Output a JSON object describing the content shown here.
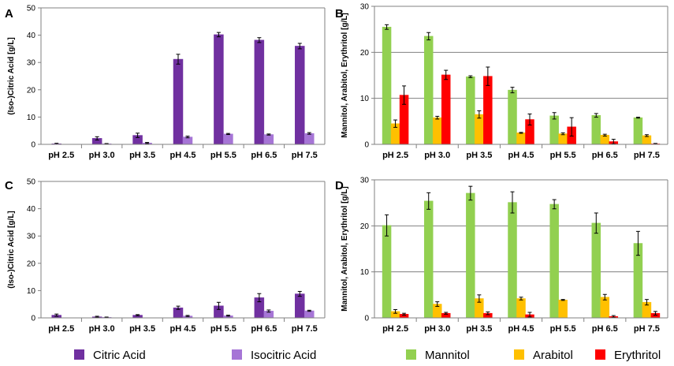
{
  "colors": {
    "Citric Acid": "#7030a0",
    "Isocitric Acid": "#a675d6",
    "Mannitol": "#92d050",
    "Arabitol": "#ffc000",
    "Erythritol": "#ff0000"
  },
  "legend": [
    "Citric Acid",
    "Isocitric Acid",
    "Mannitol",
    "Arabitol",
    "Erythritol"
  ],
  "chart_data": [
    {
      "panel": "A",
      "type": "bar",
      "ylabel": "(Iso-)Citric Acid [g/L]",
      "ylim": [
        0,
        50
      ],
      "yticks": [
        0,
        10,
        20,
        30,
        40,
        50
      ],
      "grid": false,
      "categories": [
        "pH 2.5",
        "pH 3.0",
        "pH 3.5",
        "pH 4.5",
        "pH 5.5",
        "pH 6.5",
        "pH 7.5"
      ],
      "series": [
        {
          "name": "Citric Acid",
          "values": [
            0.2,
            2.2,
            3.3,
            31.2,
            40.2,
            38.2,
            36.0
          ],
          "errors": [
            0.2,
            0.6,
            0.8,
            1.8,
            0.8,
            0.9,
            1.0
          ]
        },
        {
          "name": "Isocitric Acid",
          "values": [
            0.0,
            0.2,
            0.5,
            2.7,
            3.8,
            3.6,
            4.0
          ],
          "errors": [
            0.0,
            0.1,
            0.2,
            0.3,
            0.2,
            0.2,
            0.3
          ]
        }
      ]
    },
    {
      "panel": "B",
      "type": "bar",
      "ylabel": "Mannitol, Arabitol, Erythritol [g/L]",
      "ylim": [
        0,
        30
      ],
      "yticks": [
        0,
        10,
        20,
        30
      ],
      "grid": true,
      "categories": [
        "pH 2.5",
        "pH 3.0",
        "pH 3.5",
        "pH 4.5",
        "pH 5.5",
        "pH 6.5",
        "pH 7.5"
      ],
      "series": [
        {
          "name": "Mannitol",
          "values": [
            25.5,
            23.5,
            14.7,
            11.8,
            6.2,
            6.3,
            5.8
          ],
          "errors": [
            0.5,
            0.8,
            0.2,
            0.6,
            0.7,
            0.4,
            0.1
          ]
        },
        {
          "name": "Arabitol",
          "values": [
            4.5,
            5.8,
            6.5,
            2.5,
            2.3,
            2.0,
            1.9
          ],
          "errors": [
            0.8,
            0.3,
            0.8,
            0.1,
            0.2,
            0.2,
            0.2
          ]
        },
        {
          "name": "Erythritol",
          "values": [
            10.7,
            15.1,
            14.8,
            5.4,
            3.8,
            0.6,
            0.1
          ],
          "errors": [
            2.0,
            1.0,
            2.0,
            1.2,
            2.0,
            0.5,
            0.1
          ]
        }
      ]
    },
    {
      "panel": "C",
      "type": "bar",
      "ylabel": "(Iso-)Citric Acid [g/L]",
      "ylim": [
        0,
        50
      ],
      "yticks": [
        0,
        10,
        20,
        30,
        40,
        50
      ],
      "grid": false,
      "categories": [
        "pH 2.5",
        "pH 3.0",
        "pH 3.5",
        "pH 4.5",
        "pH 5.5",
        "pH 6.5",
        "pH 7.5"
      ],
      "series": [
        {
          "name": "Citric Acid",
          "values": [
            1.0,
            0.4,
            1.0,
            3.7,
            4.4,
            7.4,
            8.8
          ],
          "errors": [
            0.4,
            0.2,
            0.2,
            0.6,
            1.3,
            1.5,
            0.9
          ]
        },
        {
          "name": "Isocitric Acid",
          "values": [
            0.0,
            0.2,
            0.0,
            0.7,
            0.8,
            2.5,
            2.6
          ],
          "errors": [
            0.0,
            0.1,
            0.0,
            0.2,
            0.2,
            0.4,
            0.2
          ]
        }
      ]
    },
    {
      "panel": "D",
      "type": "bar",
      "ylabel": "Mannitol, Arabitol, Erythritol [g/L]",
      "ylim": [
        0,
        30
      ],
      "yticks": [
        0,
        10,
        20,
        30
      ],
      "grid": true,
      "categories": [
        "pH 2.5",
        "pH 3.0",
        "pH 3.5",
        "pH 4.5",
        "pH 5.5",
        "pH 6.5",
        "pH 7.5"
      ],
      "series": [
        {
          "name": "Mannitol",
          "values": [
            20.1,
            25.4,
            27.1,
            25.1,
            24.7,
            20.6,
            16.2
          ],
          "errors": [
            2.3,
            1.8,
            1.5,
            2.3,
            1.0,
            2.2,
            2.6
          ]
        },
        {
          "name": "Arabitol",
          "values": [
            1.4,
            3.0,
            4.2,
            4.2,
            3.9,
            4.5,
            3.4
          ],
          "errors": [
            0.4,
            0.5,
            0.8,
            0.3,
            0.1,
            0.6,
            0.6
          ]
        },
        {
          "name": "Erythritol",
          "values": [
            0.8,
            1.0,
            1.0,
            0.7,
            0.0,
            0.3,
            1.0
          ],
          "errors": [
            0.2,
            0.2,
            0.3,
            0.5,
            0.0,
            0.2,
            0.4
          ]
        }
      ]
    }
  ]
}
